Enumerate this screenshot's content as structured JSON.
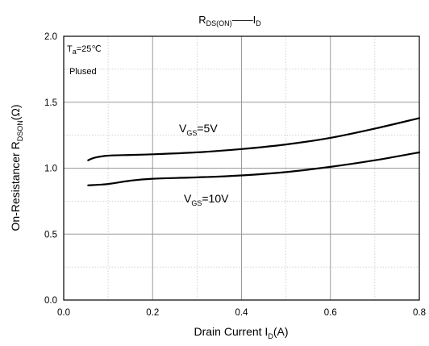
{
  "chart_data": {
    "type": "line",
    "title": {
      "main": "R",
      "main_sub": "DS(ON)",
      "sep": "——",
      "var": "I",
      "var_sub": "D"
    },
    "xlabel": {
      "pre": "Drain Current I",
      "sub": "D",
      "post": "(A)"
    },
    "ylabel": {
      "pre": "On-Resistancer R",
      "sub": "DSON",
      "post": "(Ω)"
    },
    "xlim": [
      0.0,
      0.8
    ],
    "ylim": [
      0.0,
      2.0
    ],
    "xticks": [
      "0.0",
      "0.2",
      "0.4",
      "0.6",
      "0.8"
    ],
    "yticks": [
      "0.0",
      "0.5",
      "1.0",
      "1.5",
      "2.0"
    ],
    "grid": true,
    "annotations": {
      "temp": {
        "pre": "T",
        "sub": "a",
        "post": "=25℃"
      },
      "mode": "Plused"
    },
    "series": [
      {
        "name": "VGS=5V",
        "label": {
          "pre": "V",
          "sub": "GS",
          "post": "=5V"
        },
        "x": [
          0.055,
          0.07,
          0.1,
          0.15,
          0.2,
          0.3,
          0.4,
          0.5,
          0.6,
          0.7,
          0.8
        ],
        "y": [
          1.06,
          1.08,
          1.095,
          1.1,
          1.105,
          1.12,
          1.145,
          1.18,
          1.23,
          1.3,
          1.38
        ]
      },
      {
        "name": "VGS=10V",
        "label": {
          "pre": "V",
          "sub": "GS",
          "post": "=10V"
        },
        "x": [
          0.055,
          0.1,
          0.15,
          0.2,
          0.3,
          0.4,
          0.5,
          0.6,
          0.7,
          0.8
        ],
        "y": [
          0.87,
          0.88,
          0.905,
          0.92,
          0.93,
          0.945,
          0.97,
          1.01,
          1.06,
          1.12
        ]
      }
    ]
  }
}
